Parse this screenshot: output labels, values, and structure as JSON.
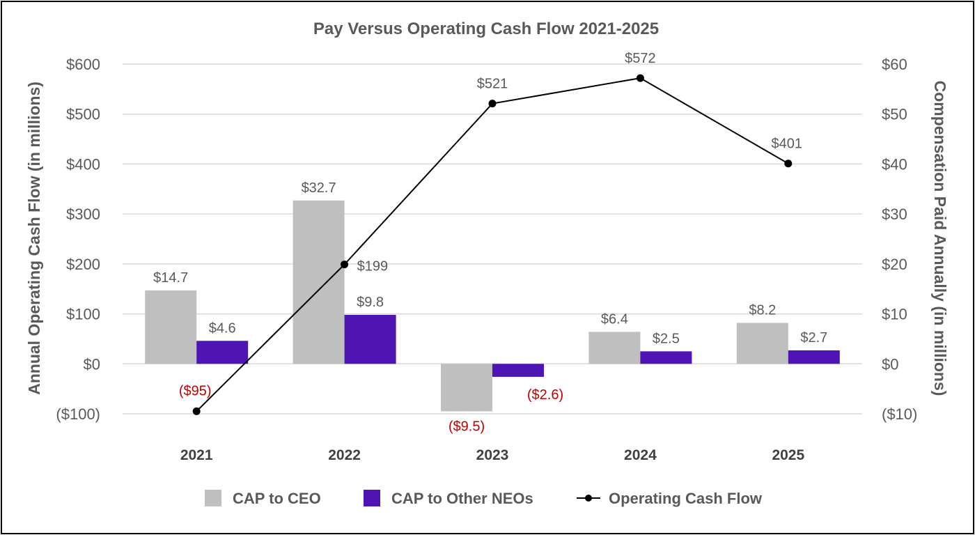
{
  "chart_data": {
    "type": "bar",
    "title": "Pay Versus Operating Cash Flow 2021-2025",
    "categories": [
      "2021",
      "2022",
      "2023",
      "2024",
      "2025"
    ],
    "y_left": {
      "label": "Annual Operating Cash Flow (in millions)",
      "range": [
        -100,
        600
      ],
      "ticks": [
        "($100)",
        "$0",
        "$100",
        "$200",
        "$300",
        "$400",
        "$500",
        "$600"
      ]
    },
    "y_right": {
      "label": "Compensation Paid Annually (in millions)",
      "range": [
        -10,
        60
      ],
      "ticks": [
        "($10)",
        "$0",
        "$10",
        "$20",
        "$30",
        "$40",
        "$50",
        "$60"
      ]
    },
    "series": [
      {
        "name": "CAP to CEO",
        "type": "bar",
        "axis": "right",
        "color": "#bfbfbf",
        "values": [
          14.7,
          32.7,
          -9.5,
          6.4,
          8.2
        ],
        "labels": [
          "$14.7",
          "$32.7",
          "($9.5)",
          "$6.4",
          "$8.2"
        ]
      },
      {
        "name": "CAP to Other NEOs",
        "type": "bar",
        "axis": "right",
        "color": "#4f14b4",
        "values": [
          4.6,
          9.8,
          -2.6,
          2.5,
          2.7
        ],
        "labels": [
          "$4.6",
          "$9.8",
          "($2.6)",
          "$2.5",
          "$2.7"
        ]
      },
      {
        "name": "Operating Cash Flow",
        "type": "line",
        "axis": "left",
        "color": "#000000",
        "values": [
          -95,
          199,
          521,
          572,
          401
        ],
        "labels": [
          "($95)",
          "$199",
          "$521",
          "$572",
          "$401"
        ]
      }
    ],
    "negative_label_color": "#c00000",
    "grid": true,
    "legend_position": "bottom"
  }
}
